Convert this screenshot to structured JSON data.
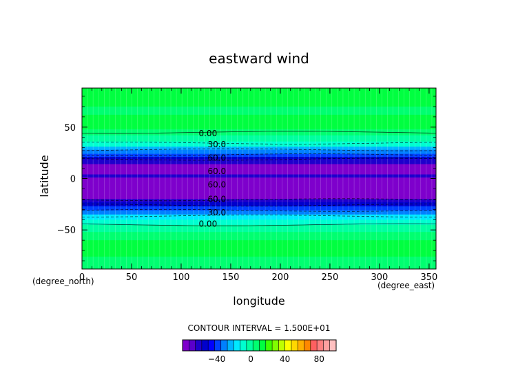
{
  "chart_data": {
    "type": "heatmap",
    "title": "eastward wind",
    "xlabel": "longitude",
    "ylabel": "latitude",
    "x_unit": "(degree_east)",
    "y_unit": "(degree_north)",
    "xlim": [
      0,
      357
    ],
    "ylim": [
      -88,
      88
    ],
    "x_ticks": [
      0,
      50,
      100,
      150,
      200,
      250,
      300,
      350
    ],
    "y_ticks": [
      -50,
      0,
      50
    ],
    "contour_interval_text": "CONTOUR INTERVAL = 1.500E+01",
    "contour_labels": [
      {
        "text": "0.00",
        "lon": 127,
        "lat": 44
      },
      {
        "text": "30.0",
        "lon": 136,
        "lat": 33
      },
      {
        "text": "60.0",
        "lon": 136,
        "lat": 20
      },
      {
        "text": "60.0",
        "lon": 136,
        "lat": 7
      },
      {
        "text": "60.0",
        "lon": 136,
        "lat": -6
      },
      {
        "text": "60.0",
        "lon": 136,
        "lat": -20
      },
      {
        "text": "30.0",
        "lon": 136,
        "lat": -33
      },
      {
        "text": "0.00",
        "lon": 127,
        "lat": -44
      }
    ],
    "latitude_profile": [
      {
        "lat": 88,
        "u": 12
      },
      {
        "lat": 80,
        "u": 10
      },
      {
        "lat": 70,
        "u": 7
      },
      {
        "lat": 62,
        "u": 12
      },
      {
        "lat": 55,
        "u": 10
      },
      {
        "lat": 48,
        "u": 3
      },
      {
        "lat": 42,
        "u": -3
      },
      {
        "lat": 36,
        "u": -12
      },
      {
        "lat": 31,
        "u": -22
      },
      {
        "lat": 28,
        "u": -30
      },
      {
        "lat": 24,
        "u": -42
      },
      {
        "lat": 21,
        "u": -52
      },
      {
        "lat": 19,
        "u": -58
      },
      {
        "lat": 18,
        "u": -65
      },
      {
        "lat": 14,
        "u": -75
      },
      {
        "lat": 9,
        "u": -75
      },
      {
        "lat": 4,
        "u": -65
      },
      {
        "lat": 2,
        "u": -62
      },
      {
        "lat": 1,
        "u": -75
      },
      {
        "lat": -3,
        "u": -75
      },
      {
        "lat": -6,
        "u": -75
      },
      {
        "lat": -8,
        "u": -75
      },
      {
        "lat": -12,
        "u": -75
      },
      {
        "lat": -18,
        "u": -75
      },
      {
        "lat": -20,
        "u": -62
      },
      {
        "lat": -23,
        "u": -52
      },
      {
        "lat": -27,
        "u": -42
      },
      {
        "lat": -31,
        "u": -30
      },
      {
        "lat": -35,
        "u": -18
      },
      {
        "lat": -40,
        "u": -8
      },
      {
        "lat": -45,
        "u": 0
      },
      {
        "lat": -52,
        "u": 7
      },
      {
        "lat": -60,
        "u": 12
      },
      {
        "lat": -68,
        "u": 12
      },
      {
        "lat": -76,
        "u": 8
      },
      {
        "lat": -88,
        "u": 6
      }
    ],
    "colorbar": {
      "min": -80,
      "max": 100,
      "step": 7.5,
      "tick_values": [
        -40,
        0,
        40,
        80
      ],
      "colors": [
        "#7e00cc",
        "#5a00cc",
        "#1e00cc",
        "#0000cc",
        "#0000ff",
        "#0040ff",
        "#0080ff",
        "#00b4ff",
        "#00e8ff",
        "#00ffd0",
        "#00ffa0",
        "#00ff70",
        "#00ff40",
        "#40ff00",
        "#80ff00",
        "#c0ff00",
        "#ffff00",
        "#ffd700",
        "#ffb000",
        "#ff8800",
        "#ff6060",
        "#ff8080",
        "#ffa0a0",
        "#ffc0c0"
      ]
    }
  }
}
